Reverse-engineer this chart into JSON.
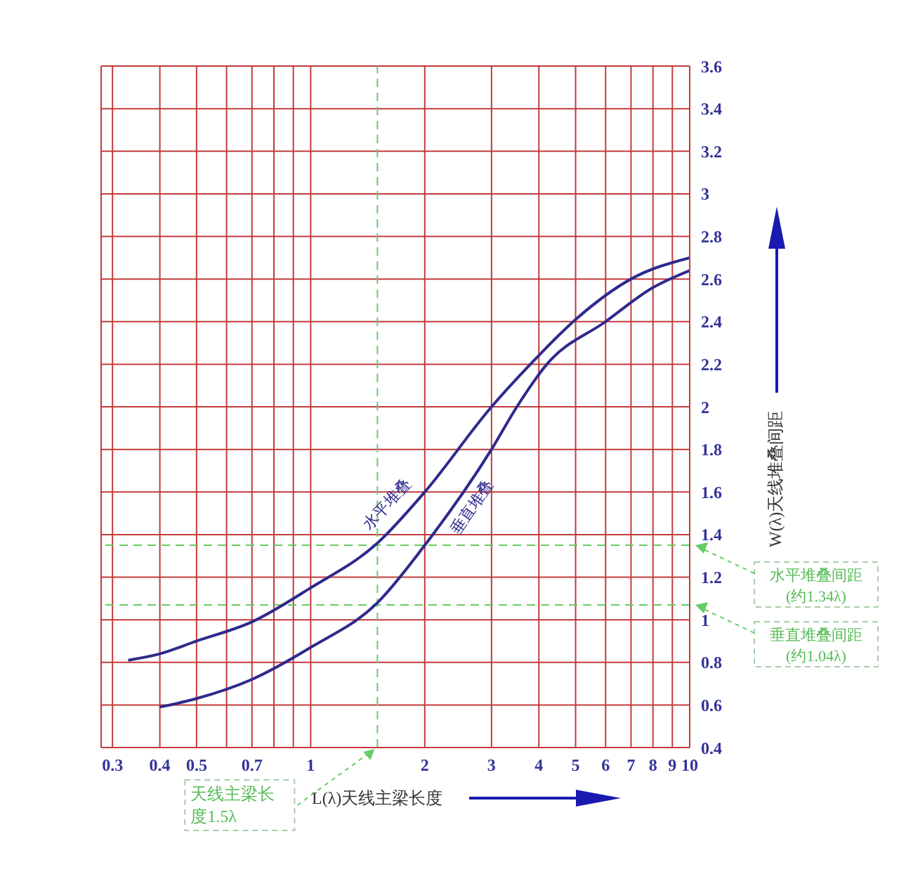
{
  "chart_data": {
    "type": "line",
    "xlabel": "L(λ)天线主梁长度",
    "ylabel": "W(λ)天线堆叠间距",
    "log": "x",
    "xlim": [
      0.28,
      10
    ],
    "xticks": [
      0.3,
      0.4,
      0.5,
      {
        "value": 0.6,
        "label": null
      },
      0.7,
      {
        "value": 0.8,
        "label": null
      },
      {
        "value": 0.9,
        "label": null
      },
      1,
      2,
      3,
      4,
      5,
      6,
      7,
      8,
      9,
      10
    ],
    "ylim": [
      0.4,
      3.6
    ],
    "yticks": [
      0.4,
      0.6,
      0.8,
      1,
      1.2,
      1.4,
      1.6,
      1.8,
      2,
      2.2,
      2.4,
      2.6,
      2.8,
      3,
      3.2,
      3.4,
      3.6
    ],
    "grid": true,
    "line_style": "solid",
    "series": [
      {
        "name": "水平堆叠",
        "color": "#2e2a8c",
        "x": [
          0.33,
          0.4,
          0.5,
          0.7,
          1,
          1.5,
          2,
          3,
          3.8,
          5,
          7,
          10
        ],
        "values": [
          0.81,
          0.84,
          0.9,
          0.99,
          1.15,
          1.36,
          1.6,
          2.0,
          2.2,
          2.41,
          2.6,
          2.7
        ]
      },
      {
        "name": "垂直堆叠",
        "color": "#2e2a8c",
        "x": [
          0.4,
          0.5,
          0.7,
          1,
          1.5,
          2,
          3,
          3.5,
          4.2,
          6,
          8,
          10
        ],
        "values": [
          0.59,
          0.63,
          0.72,
          0.87,
          1.08,
          1.35,
          1.8,
          2.0,
          2.2,
          2.4,
          2.56,
          2.64
        ]
      }
    ],
    "ref_lines": [
      {
        "axis": "x",
        "value": 1.5,
        "label": "天线主梁长度1.5λ",
        "color": "#66cc66",
        "line_style": "dashed"
      },
      {
        "axis": "y",
        "value": 1.35,
        "label": "水平堆叠间距(约1.34λ)",
        "color": "#66cc66",
        "line_style": "dashed"
      },
      {
        "axis": "y",
        "value": 1.07,
        "label": "垂直堆叠间距(约1.04λ)",
        "color": "#66cc66",
        "line_style": "dashed"
      }
    ]
  }
}
